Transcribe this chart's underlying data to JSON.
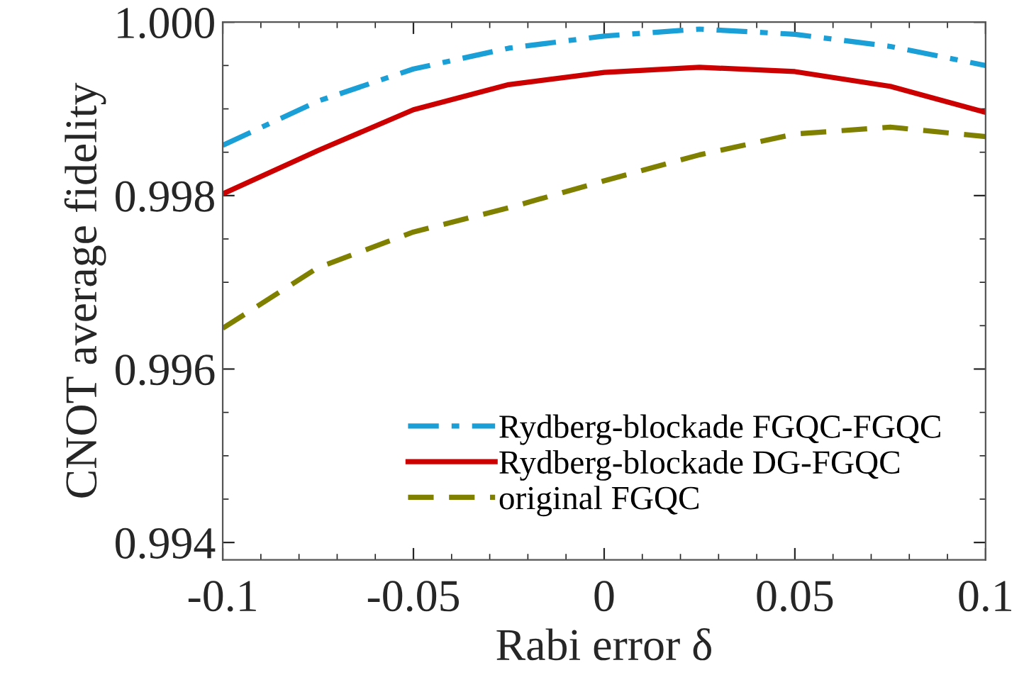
{
  "chart_data": {
    "type": "line",
    "xlabel": "Rabi error δ",
    "ylabel": "CNOT average fidelity",
    "x": [
      -0.1,
      -0.075,
      -0.05,
      -0.025,
      0,
      0.025,
      0.05,
      0.075,
      0.1
    ],
    "series": [
      {
        "name": "Rydberg-blockade FGQC-FGQC",
        "color": "#1a9fd6",
        "line_style": "dashdot",
        "values": [
          0.99858,
          0.99909,
          0.99946,
          0.9997,
          0.99984,
          0.99992,
          0.99986,
          0.99972,
          0.9995
        ]
      },
      {
        "name": "Rydberg-blockade DG-FGQC",
        "color": "#cc0000",
        "line_style": "solid",
        "values": [
          0.99802,
          0.99852,
          0.99899,
          0.99928,
          0.99942,
          0.99948,
          0.99943,
          0.99926,
          0.99896
        ]
      },
      {
        "name": "original FGQC",
        "color": "#808000",
        "line_style": "dashed",
        "values": [
          0.99647,
          0.99717,
          0.99758,
          0.99786,
          0.99817,
          0.99847,
          0.99871,
          0.99879,
          0.99868
        ]
      }
    ],
    "xlim": [
      -0.1,
      0.1
    ],
    "xticks": [
      {
        "value": -0.1,
        "label": "-0.1"
      },
      {
        "value": -0.05,
        "label": "-0.05"
      },
      0,
      0.05,
      0.1
    ],
    "ylim": [
      0.9938,
      1.0
    ],
    "yticks": [
      0.994,
      0.996,
      0.998,
      {
        "value": 1.0,
        "label": "1.000"
      }
    ],
    "grid": false,
    "legend": "bottom right",
    "marker": "none"
  }
}
